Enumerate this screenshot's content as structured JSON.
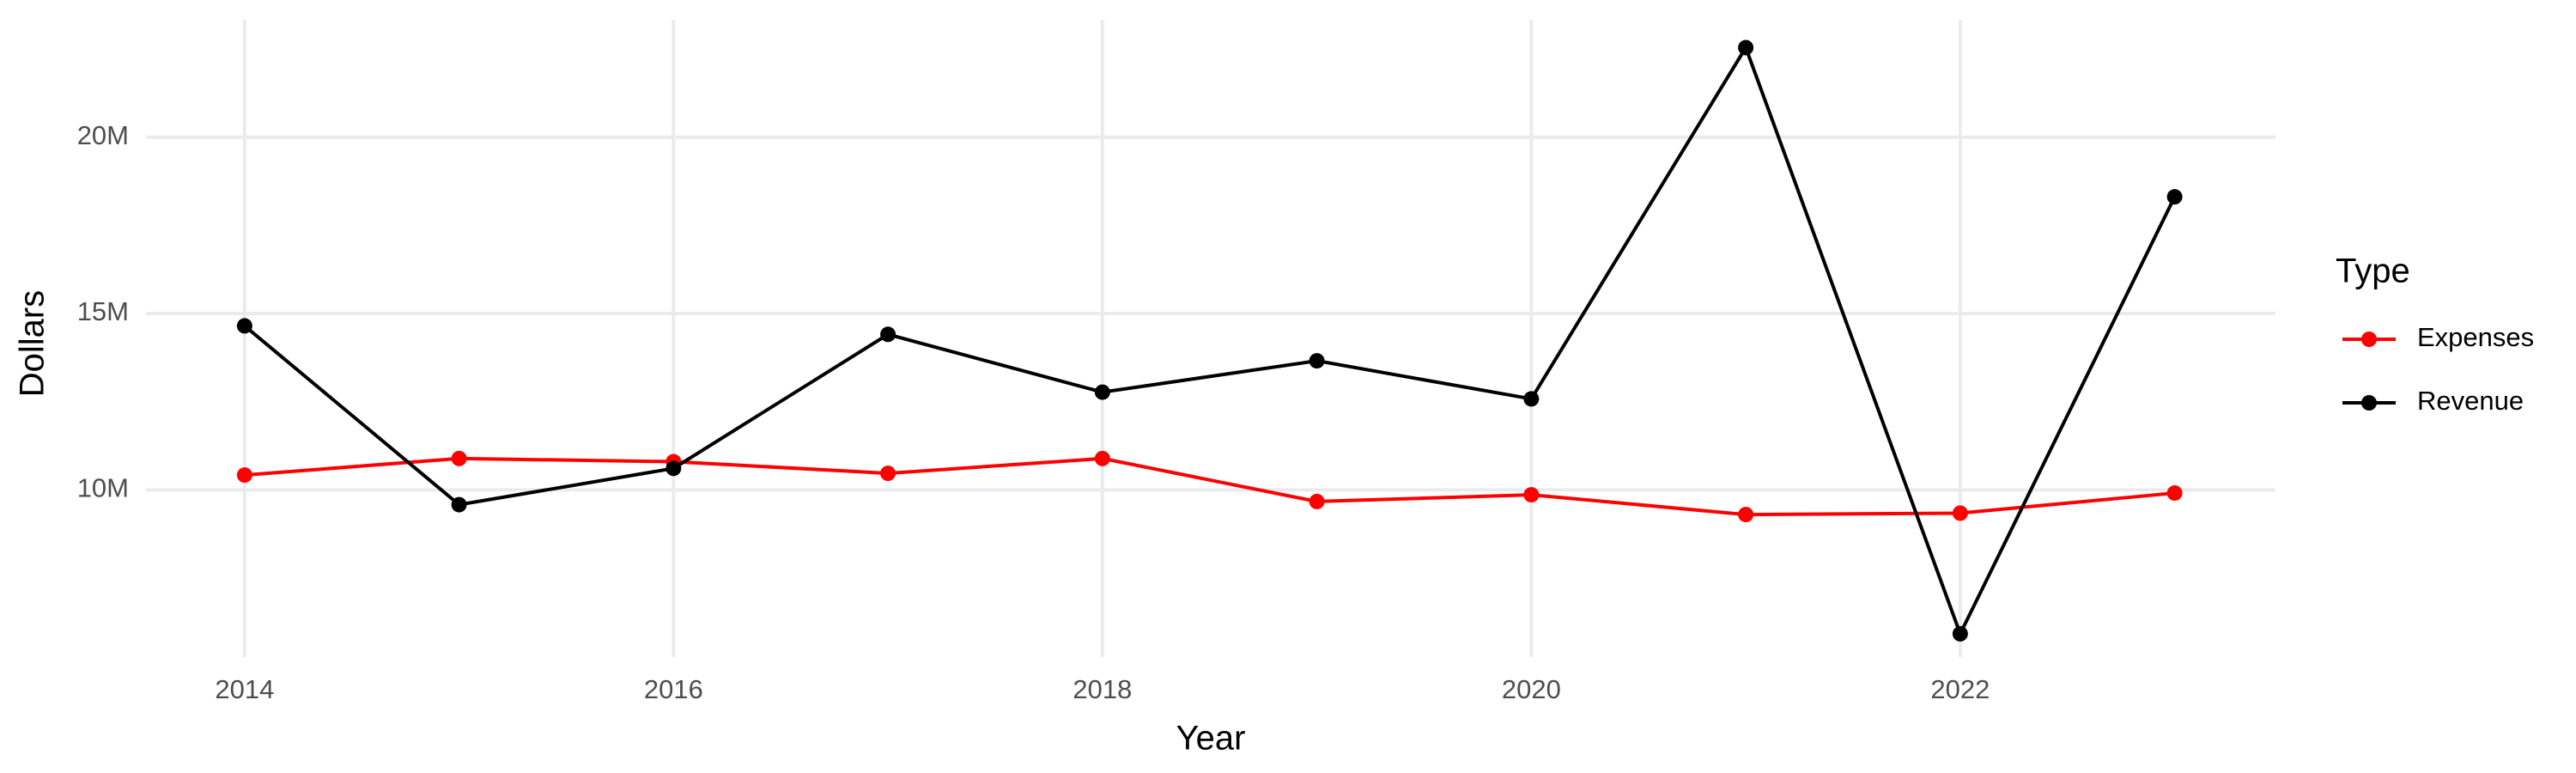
{
  "chart_data": {
    "type": "line",
    "x_label": "Year",
    "y_label": "Dollars",
    "legend_title": "Type",
    "x": [
      2014,
      2015,
      2016,
      2017,
      2018,
      2019,
      2020,
      2021,
      2022,
      2023
    ],
    "series": [
      {
        "name": "Expenses",
        "color": "#ff0000",
        "values": [
          10420000,
          10890000,
          10800000,
          10470000,
          10890000,
          9670000,
          9860000,
          9300000,
          9340000,
          9910000
        ]
      },
      {
        "name": "Revenue",
        "color": "#000000",
        "values": [
          14650000,
          9580000,
          10610000,
          14410000,
          12770000,
          13660000,
          12580000,
          22540000,
          5920000,
          18310000
        ]
      }
    ],
    "xlim": [
      2013.54,
      2023.47
    ],
    "xticks": [
      2014,
      2016,
      2018,
      2020,
      2022
    ],
    "ylim": [
      5260000,
      23330000
    ],
    "yticks": [
      {
        "value": 10000000,
        "label": "10M"
      },
      {
        "value": 15000000,
        "label": "15M"
      },
      {
        "value": 20000000,
        "label": "20M"
      }
    ],
    "grid": true,
    "legend": "right"
  }
}
